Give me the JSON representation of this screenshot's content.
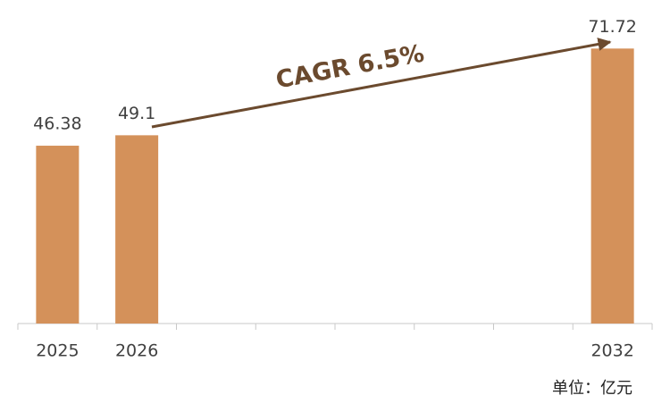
{
  "chart_data": {
    "type": "bar",
    "categories": [
      "2025",
      "2026",
      null,
      null,
      null,
      null,
      null,
      "2032"
    ],
    "values": [
      46.38,
      49.1,
      null,
      null,
      null,
      null,
      null,
      71.72
    ],
    "color": "#d4915a",
    "annotation": "CAGR 6.5%",
    "unit_label": "单位：亿元"
  }
}
